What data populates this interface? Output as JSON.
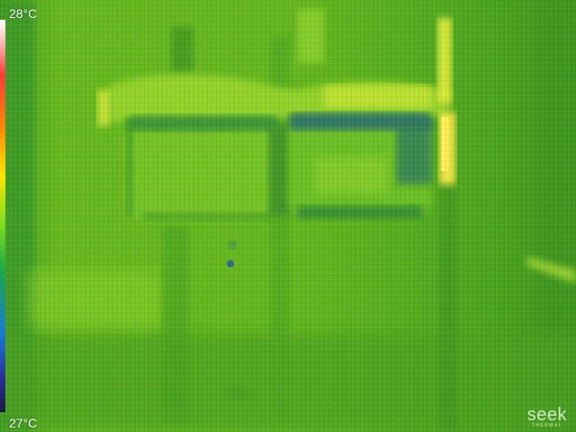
{
  "thermal_image": {
    "description_icon": "thermal-camera-view",
    "scale": {
      "max_label": "28°C",
      "min_label": "27°C"
    },
    "brand": {
      "name": "seek",
      "subtitle": "THERMAL"
    },
    "palette": {
      "background": "#5fb51a",
      "warm": "#d8e838",
      "hot": "#f0e440",
      "cool": "#2f9a28",
      "cold": "#2d6f70"
    }
  }
}
